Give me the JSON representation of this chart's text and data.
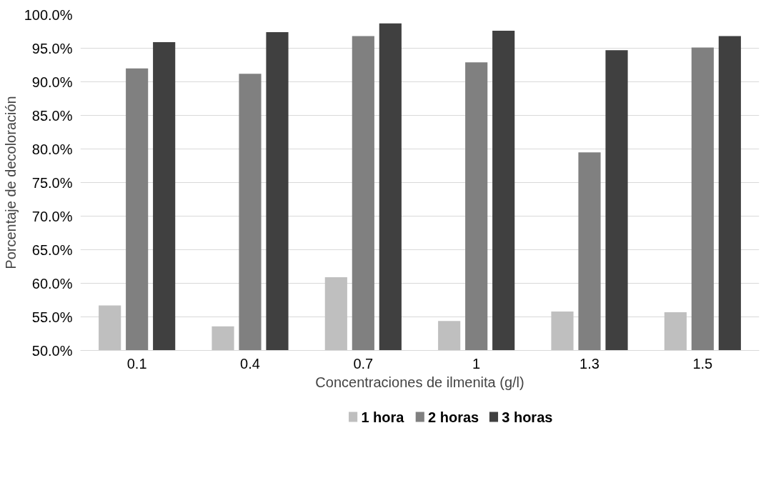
{
  "chart_data": {
    "type": "bar",
    "xlabel": "Concentraciones de ilmenita (g/l)",
    "ylabel": "Porcentaje de decoloración",
    "categories": [
      "0.1",
      "0.4",
      "0.7",
      "1",
      "1.3",
      "1.5"
    ],
    "series": [
      {
        "name": "1 hora",
        "color": "#bfbfbf",
        "values": [
          56.7,
          53.6,
          60.9,
          54.4,
          55.8,
          55.7
        ]
      },
      {
        "name": "2 horas",
        "color": "#808080",
        "values": [
          92.0,
          91.2,
          96.8,
          92.9,
          79.5,
          95.1
        ]
      },
      {
        "name": "3 horas",
        "color": "#404040",
        "values": [
          95.9,
          97.4,
          98.7,
          97.6,
          94.7,
          96.8
        ]
      }
    ],
    "ylim": [
      50,
      100
    ],
    "yticks": [
      {
        "value": 50,
        "label": "50.0%"
      },
      {
        "value": 55,
        "label": "55.0%"
      },
      {
        "value": 60,
        "label": "60.0%"
      },
      {
        "value": 65,
        "label": "65.0%"
      },
      {
        "value": 70,
        "label": "70.0%"
      },
      {
        "value": 75,
        "label": "75.0%"
      },
      {
        "value": 80,
        "label": "80.0%"
      },
      {
        "value": 85,
        "label": "85.0%"
      },
      {
        "value": 90,
        "label": "90.0%"
      },
      {
        "value": 95,
        "label": "95.0%"
      },
      {
        "value": 100,
        "label": "100.0%"
      }
    ],
    "grid": "y",
    "legend": "bottom"
  }
}
